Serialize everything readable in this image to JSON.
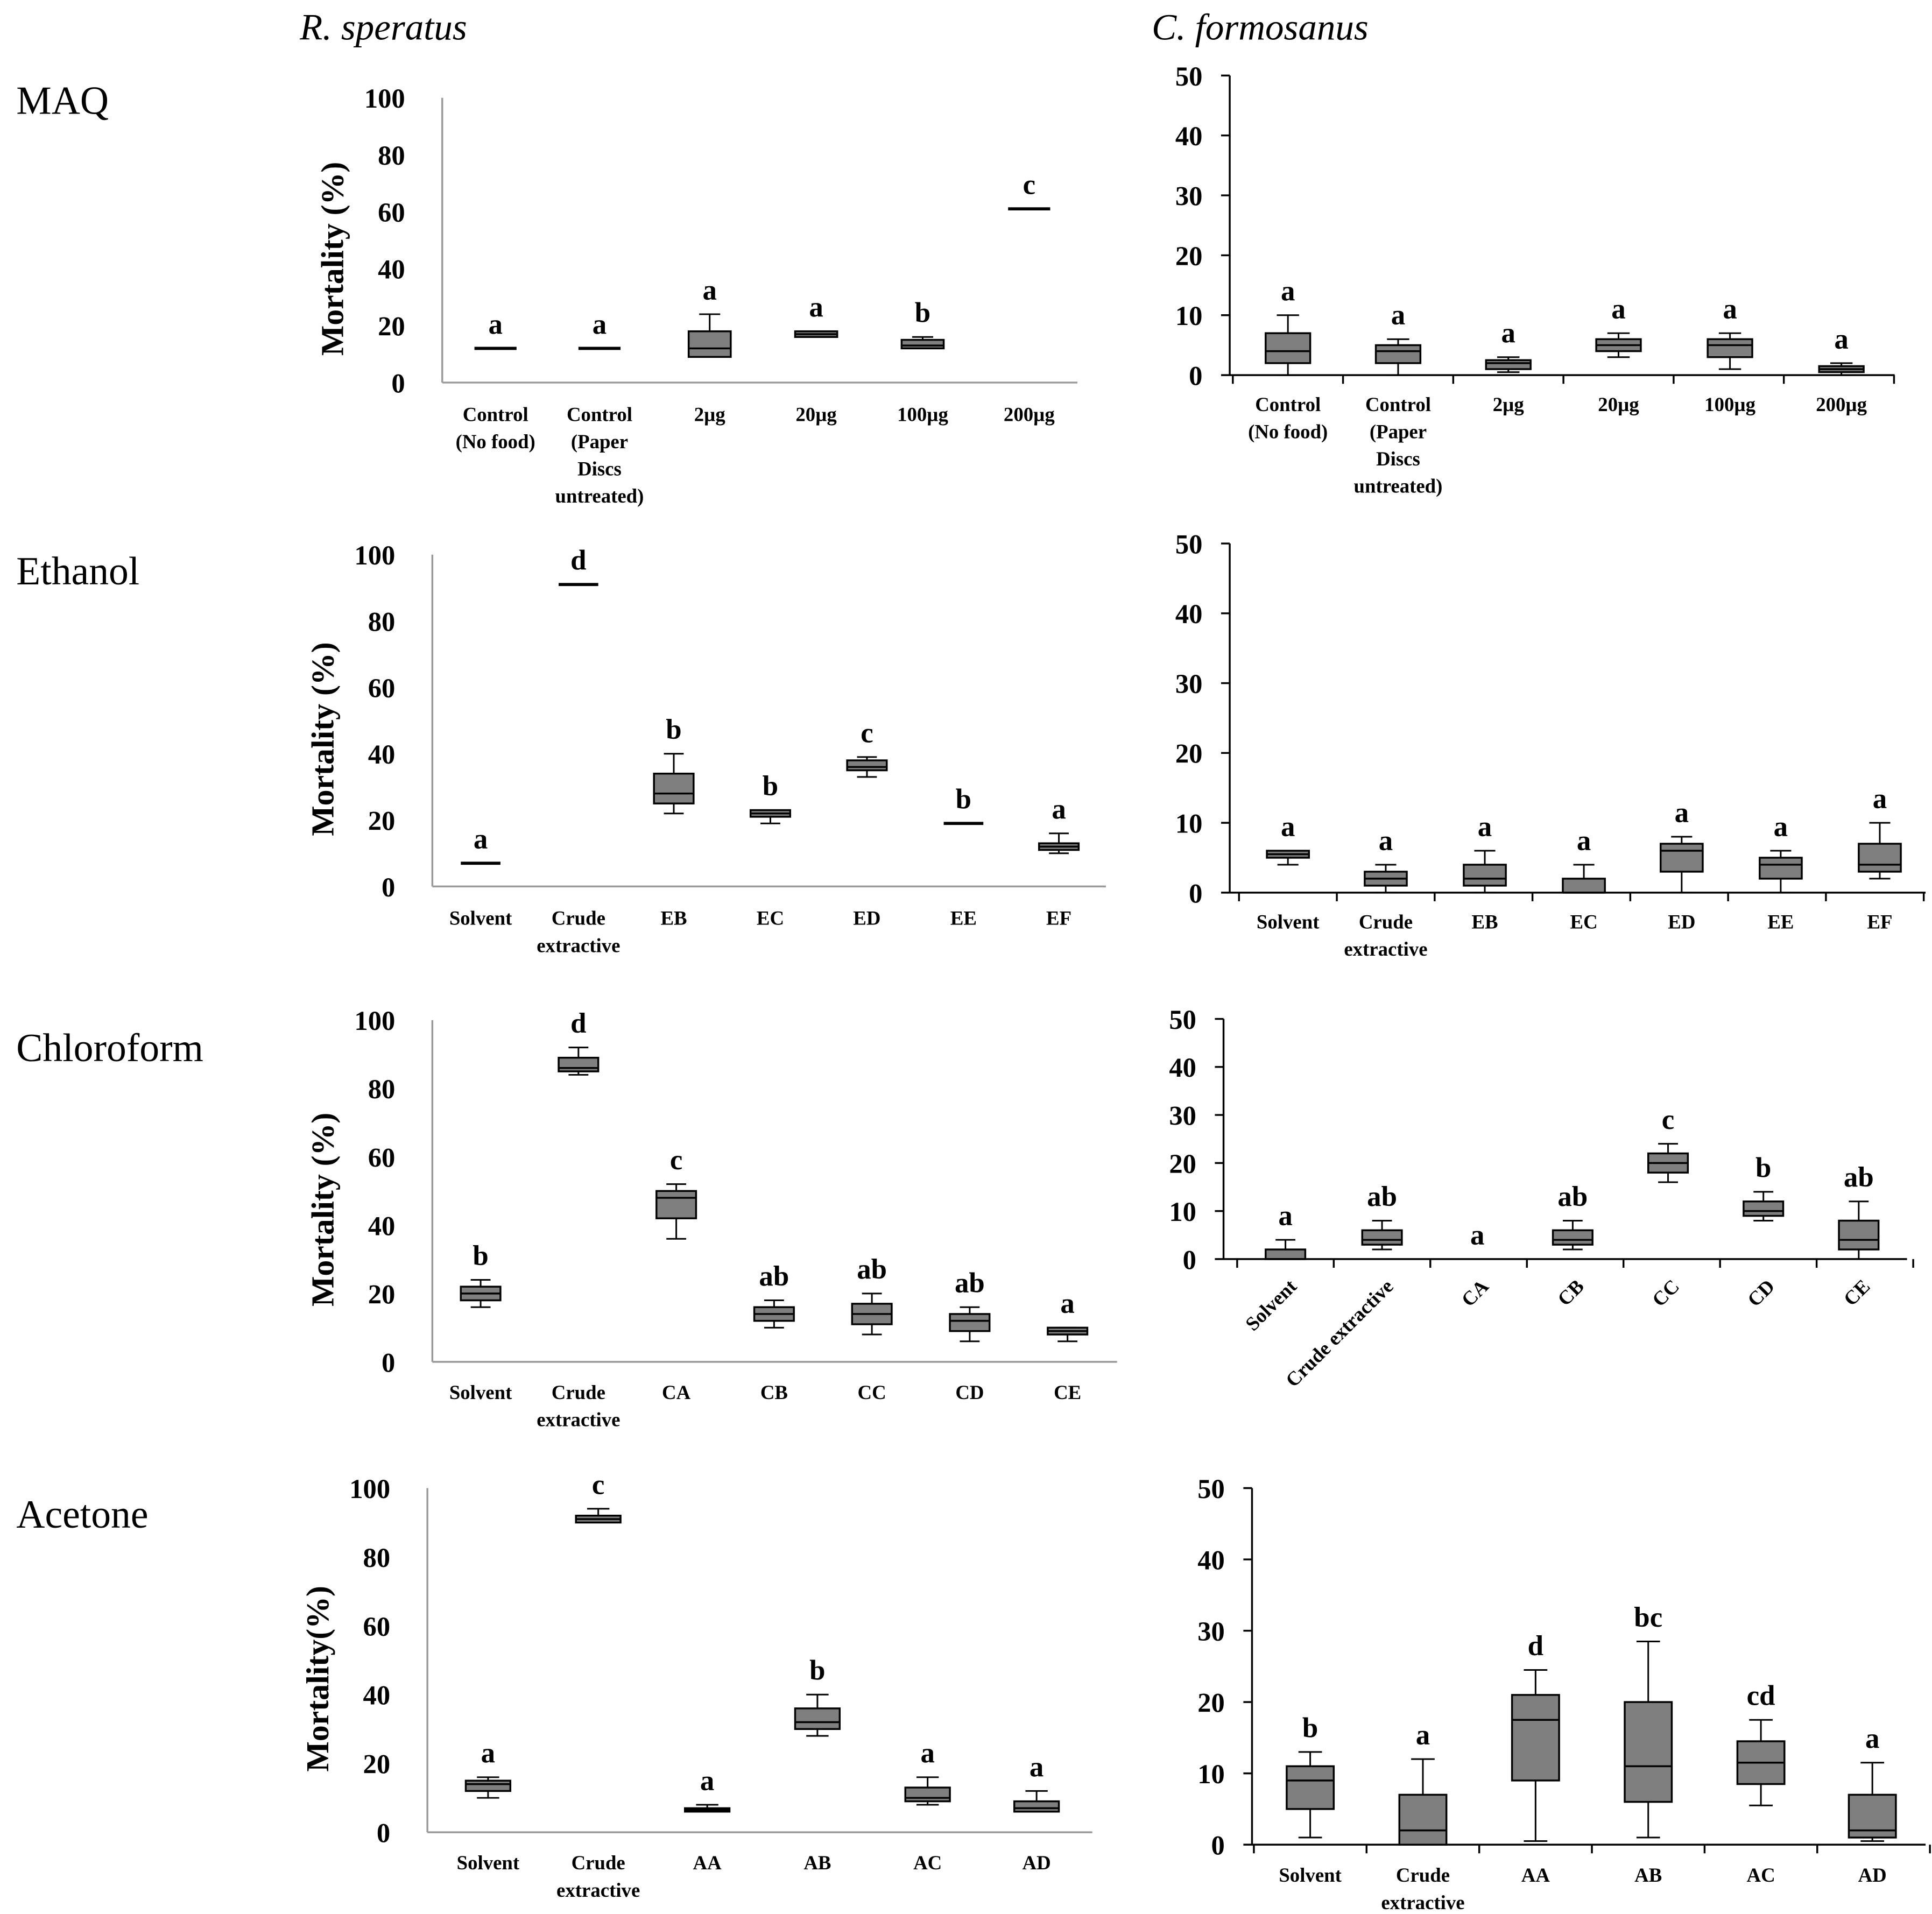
{
  "columns": [
    "R. speratus",
    "C. formosanus"
  ],
  "rows": [
    "MAQ",
    "Ethanol",
    "Chloroform",
    "Acetone"
  ],
  "chart_data": [
    {
      "type": "box",
      "title": "MAQ - R. speratus",
      "ylabel": "Mortality (%)",
      "ylim": [
        0,
        100
      ],
      "yticks": [
        0,
        20,
        40,
        60,
        80,
        100
      ],
      "categories": [
        "Control\n(No food)",
        "Control\n(Paper\nDiscs\nuntreated)",
        "2µg",
        "20µg",
        "100µg",
        "200µg"
      ],
      "boxes": [
        [
          12,
          12,
          12,
          12,
          12
        ],
        [
          12,
          12,
          12,
          12,
          12
        ],
        [
          9,
          9,
          12,
          18,
          24
        ],
        [
          16,
          16,
          17,
          18,
          18
        ],
        [
          12,
          12,
          13,
          15,
          16
        ],
        [
          61,
          61,
          61,
          61,
          61
        ]
      ],
      "letters": [
        "a",
        "a",
        "a",
        "a",
        "b",
        "c"
      ]
    },
    {
      "type": "box",
      "title": "MAQ - C. formosanus",
      "ylabel": "",
      "ylim": [
        0,
        50
      ],
      "yticks": [
        0,
        10,
        20,
        30,
        40,
        50
      ],
      "categories": [
        "Control\n(No food)",
        "Control\n(Paper\nDiscs\nuntreated)",
        "2µg",
        "20µg",
        "100µg",
        "200µg"
      ],
      "boxes": [
        [
          0,
          2,
          4,
          7,
          10
        ],
        [
          0,
          2,
          4,
          5,
          6
        ],
        [
          0.5,
          1,
          2,
          2.5,
          3
        ],
        [
          3,
          4,
          5,
          6,
          7
        ],
        [
          1,
          3,
          5,
          6,
          7
        ],
        [
          0,
          0.5,
          1,
          1.5,
          2
        ]
      ],
      "letters": [
        "a",
        "a",
        "a",
        "a",
        "a",
        "a"
      ]
    },
    {
      "type": "box",
      "title": "Ethanol - R. speratus",
      "ylabel": "Mortality (%)",
      "ylim": [
        0,
        100
      ],
      "yticks": [
        0,
        20,
        40,
        60,
        80,
        100
      ],
      "categories": [
        "Solvent",
        "Crude\nextractive",
        "EB",
        "EC",
        "ED",
        "EE",
        "EF"
      ],
      "boxes": [
        [
          7,
          7,
          7,
          7,
          7
        ],
        [
          91,
          91,
          91,
          91,
          91
        ],
        [
          22,
          25,
          28,
          34,
          40
        ],
        [
          19,
          21,
          22,
          23,
          23
        ],
        [
          33,
          35,
          36,
          38,
          39
        ],
        [
          19,
          19,
          19,
          19,
          19
        ],
        [
          10,
          11,
          12,
          13,
          16
        ]
      ],
      "letters": [
        "a",
        "d",
        "b",
        "b",
        "c",
        "b",
        "a"
      ]
    },
    {
      "type": "box",
      "title": "Ethanol - C. formosanus",
      "ylabel": "",
      "ylim": [
        0,
        50
      ],
      "yticks": [
        0,
        10,
        20,
        30,
        40,
        50
      ],
      "categories": [
        "Solvent",
        "Crude\nextractive",
        "EB",
        "EC",
        "ED",
        "EE",
        "EF"
      ],
      "boxes": [
        [
          4,
          5,
          5.5,
          6,
          6
        ],
        [
          0,
          1,
          2,
          3,
          4
        ],
        [
          0,
          1,
          2,
          4,
          6
        ],
        [
          0,
          0,
          0,
          2,
          4
        ],
        [
          0,
          3,
          6,
          7,
          8
        ],
        [
          0,
          2,
          4,
          5,
          6
        ],
        [
          2,
          3,
          4,
          7,
          10
        ]
      ],
      "letters": [
        "a",
        "a",
        "a",
        "a",
        "a",
        "a",
        "a"
      ]
    },
    {
      "type": "box",
      "title": "Chloroform - R. speratus",
      "ylabel": "Mortality (%)",
      "ylim": [
        0,
        100
      ],
      "yticks": [
        0,
        20,
        40,
        60,
        80,
        100
      ],
      "categories": [
        "Solvent",
        "Crude\nextractive",
        "CA",
        "CB",
        "CC",
        "CD",
        "CE"
      ],
      "boxes": [
        [
          16,
          18,
          20,
          22,
          24
        ],
        [
          84,
          85,
          86,
          89,
          92
        ],
        [
          36,
          42,
          48,
          50,
          52
        ],
        [
          10,
          12,
          14,
          16,
          18
        ],
        [
          8,
          11,
          14,
          17,
          20
        ],
        [
          6,
          9,
          12,
          14,
          16
        ],
        [
          6,
          8,
          9,
          10,
          10
        ]
      ],
      "letters": [
        "b",
        "d",
        "c",
        "ab",
        "ab",
        "ab",
        "a"
      ]
    },
    {
      "type": "box",
      "title": "Chloroform - C. formosanus",
      "ylabel": "",
      "ylim": [
        0,
        50
      ],
      "yticks": [
        0,
        10,
        20,
        30,
        40,
        50
      ],
      "categories": [
        "Solvent",
        "Crude extractive",
        "CA",
        "CB",
        "CC",
        "CD",
        "CE"
      ],
      "boxes": [
        [
          0,
          0,
          0,
          2,
          4
        ],
        [
          2,
          3,
          4,
          6,
          8
        ],
        null,
        [
          2,
          3,
          4,
          6,
          8
        ],
        [
          16,
          18,
          20,
          22,
          24
        ],
        [
          8,
          9,
          10,
          12,
          14
        ],
        [
          0,
          2,
          4,
          8,
          12
        ]
      ],
      "letters": [
        "a",
        "ab",
        "a",
        "ab",
        "c",
        "b",
        "ab"
      ]
    },
    {
      "type": "box",
      "title": "Acetone - R. speratus",
      "ylabel": "Mortality(%)",
      "ylim": [
        0,
        100
      ],
      "yticks": [
        0,
        20,
        40,
        60,
        80,
        100
      ],
      "categories": [
        "Solvent",
        "Crude\nextractive",
        "AA",
        "AB",
        "AC",
        "AD"
      ],
      "boxes": [
        [
          10,
          12,
          14,
          15,
          16
        ],
        [
          90,
          90,
          91,
          92,
          94
        ],
        [
          6,
          6,
          6.5,
          7,
          8
        ],
        [
          28,
          30,
          32,
          36,
          40
        ],
        [
          8,
          9,
          10,
          13,
          16
        ],
        [
          6,
          6,
          7,
          9,
          12
        ]
      ],
      "letters": [
        "a",
        "c",
        "a",
        "b",
        "a",
        "a"
      ]
    },
    {
      "type": "box",
      "title": "Acetone - C. formosanus",
      "ylabel": "",
      "ylim": [
        0,
        50
      ],
      "yticks": [
        0,
        10,
        20,
        30,
        40,
        50
      ],
      "categories": [
        "Solvent",
        "Crude\nextractive",
        "AA",
        "AB",
        "AC",
        "AD"
      ],
      "boxes": [
        [
          1,
          5,
          9,
          11,
          13
        ],
        [
          0,
          0,
          2,
          7,
          12
        ],
        [
          0.5,
          9,
          17.5,
          21,
          24.5
        ],
        [
          1,
          6,
          11,
          20,
          28.5
        ],
        [
          5.5,
          8.5,
          11.5,
          14.5,
          17.5
        ],
        [
          0.5,
          1,
          2,
          7,
          11.5
        ]
      ],
      "letters": [
        "b",
        "a",
        "d",
        "bc",
        "cd",
        "a"
      ]
    }
  ],
  "colors": {
    "box_fill": "#7f7f7f",
    "stroke": "#000000",
    "axis_light": "#9a9a9a"
  }
}
